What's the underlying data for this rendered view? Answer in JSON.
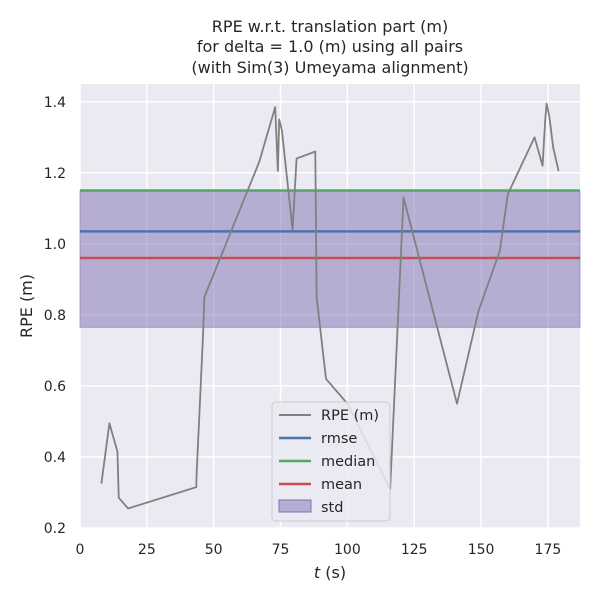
{
  "chart_data": {
    "type": "line",
    "title_lines": [
      "RPE w.r.t. translation part (m)",
      "for delta = 1.0 (m) using all pairs",
      "(with Sim(3) Umeyama alignment)"
    ],
    "xlabel_var": "t",
    "xlabel_unit": " (s)",
    "ylabel": "RPE (m)",
    "xlim": [
      0,
      187
    ],
    "ylim": [
      0.2,
      1.45
    ],
    "xticks": [
      0,
      25,
      50,
      75,
      100,
      125,
      150,
      175
    ],
    "yticks": [
      0.2,
      0.4,
      0.6,
      0.8,
      1.0,
      1.2,
      1.4
    ],
    "ytick_labels": [
      "0.2",
      "0.4",
      "0.6",
      "0.8",
      "1.0",
      "1.2",
      "1.4"
    ],
    "grid": true,
    "background": "#eaeaf2",
    "legend_position": "lower-center",
    "series": [
      {
        "name": "RPE (m)",
        "color": "#808080",
        "x": [
          8,
          11,
          14,
          14.5,
          18,
          43.5,
          43.6,
          46,
          46.5,
          67,
          73,
          74,
          74.5,
          75.5,
          79.5,
          81,
          88,
          88.5,
          92,
          100,
          116,
          121,
          141,
          149,
          157,
          160,
          170,
          173,
          174,
          174.5,
          175.5,
          177,
          179
        ],
        "y": [
          0.325,
          0.495,
          0.415,
          0.285,
          0.255,
          0.315,
          0.35,
          0.74,
          0.85,
          1.23,
          1.385,
          1.205,
          1.35,
          1.32,
          1.04,
          1.24,
          1.26,
          0.85,
          0.62,
          0.55,
          0.31,
          1.13,
          0.55,
          0.81,
          0.98,
          1.14,
          1.3,
          1.22,
          1.35,
          1.395,
          1.36,
          1.27,
          1.205
        ]
      }
    ],
    "stats": {
      "rmse": {
        "name": "rmse",
        "value": 1.035,
        "color": "#4c72b0"
      },
      "median": {
        "name": "median",
        "value": 1.15,
        "color": "#55a868"
      },
      "mean": {
        "name": "mean",
        "value": 0.96,
        "color": "#c44e52"
      },
      "std": {
        "name": "std",
        "lower": 0.765,
        "upper": 1.148,
        "color": "#8172b2"
      }
    }
  }
}
